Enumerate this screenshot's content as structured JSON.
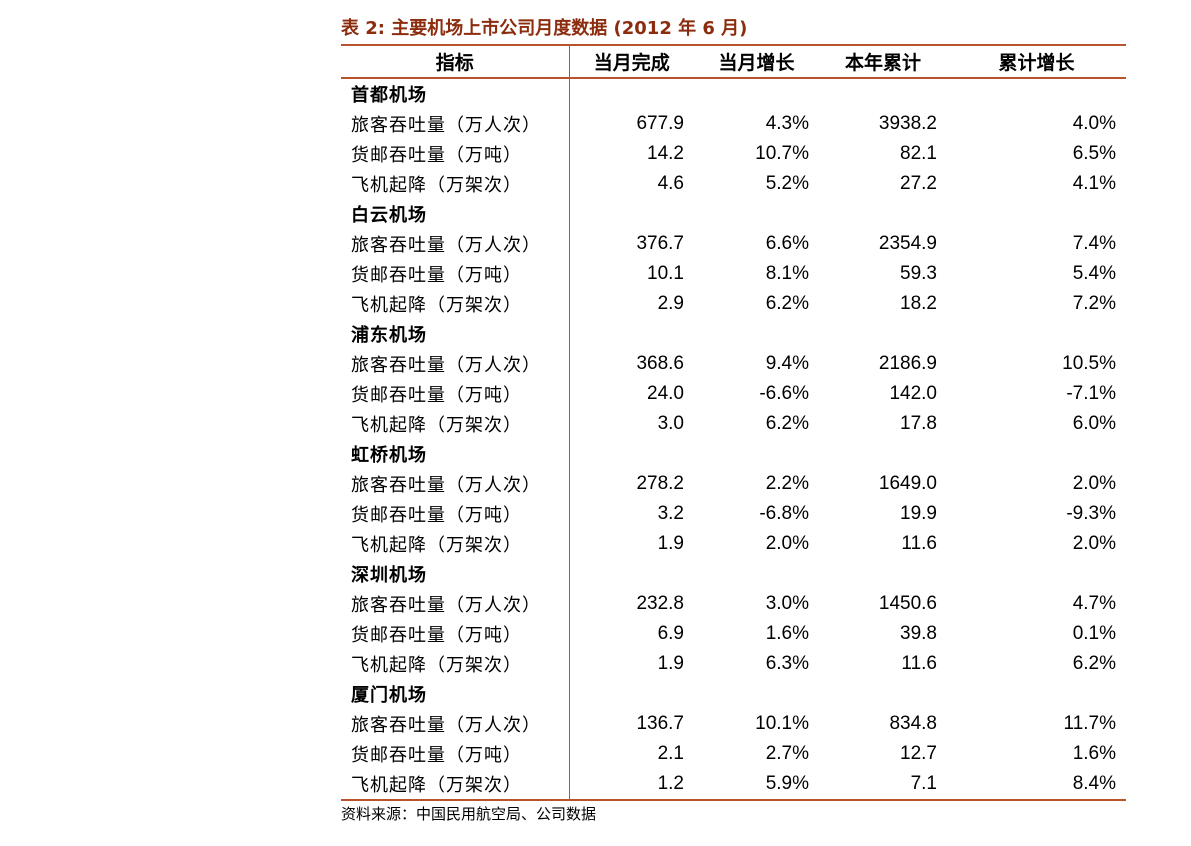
{
  "title": "表 2:  主要机场上市公司月度数据 (2012 年 6 月)",
  "headers": [
    "指标",
    "当月完成",
    "当月增长",
    "本年累计",
    "累计增长"
  ],
  "groups": [
    {
      "name": "首都机场",
      "rows": [
        {
          "label": "旅客吞吐量（万人次）",
          "values": [
            "677.9",
            "4.3%",
            "3938.2",
            "4.0%"
          ]
        },
        {
          "label": "货邮吞吐量（万吨）",
          "values": [
            "14.2",
            "10.7%",
            "82.1",
            "6.5%"
          ]
        },
        {
          "label": "飞机起降（万架次）",
          "values": [
            "4.6",
            "5.2%",
            "27.2",
            "4.1%"
          ]
        }
      ]
    },
    {
      "name": "白云机场",
      "rows": [
        {
          "label": "旅客吞吐量（万人次）",
          "values": [
            "376.7",
            "6.6%",
            "2354.9",
            "7.4%"
          ]
        },
        {
          "label": "货邮吞吐量（万吨）",
          "values": [
            "10.1",
            "8.1%",
            "59.3",
            "5.4%"
          ]
        },
        {
          "label": "飞机起降（万架次）",
          "values": [
            "2.9",
            "6.2%",
            "18.2",
            "7.2%"
          ]
        }
      ]
    },
    {
      "name": "浦东机场",
      "rows": [
        {
          "label": "旅客吞吐量（万人次）",
          "values": [
            "368.6",
            "9.4%",
            "2186.9",
            "10.5%"
          ]
        },
        {
          "label": "货邮吞吐量（万吨）",
          "values": [
            "24.0",
            "-6.6%",
            "142.0",
            "-7.1%"
          ]
        },
        {
          "label": "飞机起降（万架次）",
          "values": [
            "3.0",
            "6.2%",
            "17.8",
            "6.0%"
          ]
        }
      ]
    },
    {
      "name": "虹桥机场",
      "rows": [
        {
          "label": "旅客吞吐量（万人次）",
          "values": [
            "278.2",
            "2.2%",
            "1649.0",
            "2.0%"
          ]
        },
        {
          "label": "货邮吞吐量（万吨）",
          "values": [
            "3.2",
            "-6.8%",
            "19.9",
            "-9.3%"
          ]
        },
        {
          "label": "飞机起降（万架次）",
          "values": [
            "1.9",
            "2.0%",
            "11.6",
            "2.0%"
          ]
        }
      ]
    },
    {
      "name": "深圳机场",
      "rows": [
        {
          "label": "旅客吞吐量（万人次）",
          "values": [
            "232.8",
            "3.0%",
            "1450.6",
            "4.7%"
          ]
        },
        {
          "label": "货邮吞吐量（万吨）",
          "values": [
            "6.9",
            "1.6%",
            "39.8",
            "0.1%"
          ]
        },
        {
          "label": "飞机起降（万架次）",
          "values": [
            "1.9",
            "6.3%",
            "11.6",
            "6.2%"
          ]
        }
      ]
    },
    {
      "name": "厦门机场",
      "rows": [
        {
          "label": "旅客吞吐量（万人次）",
          "values": [
            "136.7",
            "10.1%",
            "834.8",
            "11.7%"
          ]
        },
        {
          "label": "货邮吞吐量（万吨）",
          "values": [
            "2.1",
            "2.7%",
            "12.7",
            "1.6%"
          ]
        },
        {
          "label": "飞机起降（万架次）",
          "values": [
            "1.2",
            "5.9%",
            "7.1",
            "8.4%"
          ]
        }
      ]
    }
  ],
  "source": "资料来源：中国民用航空局、公司数据",
  "colors": {
    "title": "#8B2C0E",
    "rule": "#B8532D"
  }
}
